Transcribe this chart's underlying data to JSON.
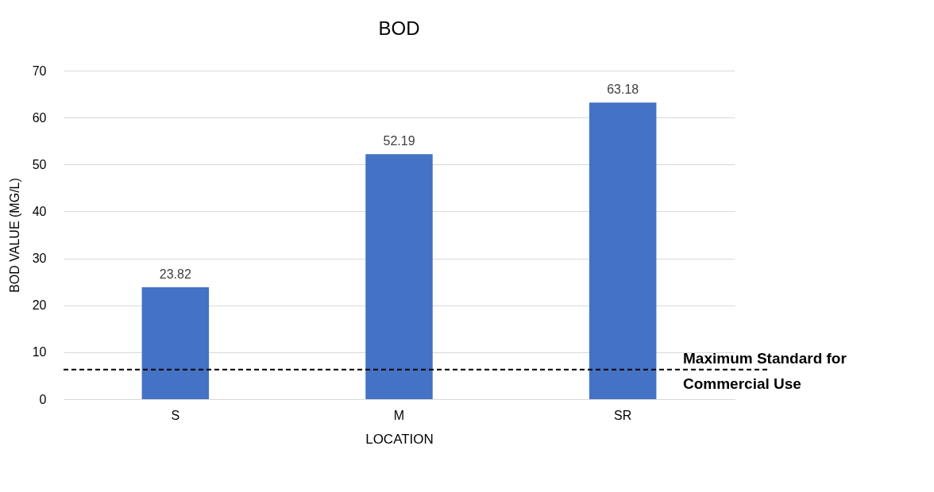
{
  "chart_data": {
    "type": "bar",
    "title": "BOD",
    "xlabel": "LOCATION",
    "ylabel": "BOD VALUE (MG/L)",
    "categories": [
      "S",
      "M",
      "SR"
    ],
    "values": [
      23.82,
      52.19,
      63.18
    ],
    "color": "#4472c4",
    "ylim": [
      0,
      70
    ],
    "yticks": [
      0,
      10,
      20,
      30,
      40,
      50,
      60,
      70
    ],
    "grid": "y",
    "data_labels": true,
    "ref_lines": [
      {
        "axis": "y",
        "value": 6.3,
        "label": "Maximum Standard for Commercial Use",
        "line_style": "dashed",
        "color": "#000000"
      }
    ]
  }
}
